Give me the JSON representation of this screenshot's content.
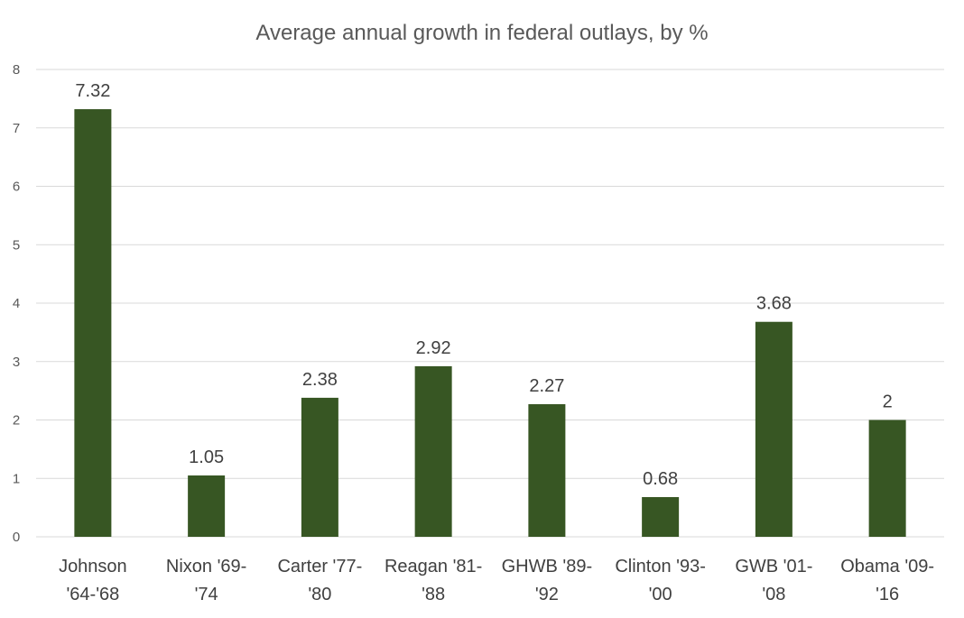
{
  "chart_data": {
    "type": "bar",
    "title": "Average annual growth in federal outlays, by %",
    "xlabel": "",
    "ylabel": "",
    "categories": [
      [
        "Johnson",
        "'64-'68"
      ],
      [
        "Nixon '69-",
        "'74"
      ],
      [
        "Carter '77-",
        "'80"
      ],
      [
        "Reagan '81-",
        "'88"
      ],
      [
        "GHWB '89-",
        "'92"
      ],
      [
        "Clinton '93-",
        "'00"
      ],
      [
        "GWB '01-",
        "'08"
      ],
      [
        "Obama '09-",
        "'16"
      ]
    ],
    "values": [
      7.32,
      1.05,
      2.38,
      2.92,
      2.27,
      0.68,
      3.68,
      2
    ],
    "data_labels": [
      "7.32",
      "1.05",
      "2.38",
      "2.92",
      "2.27",
      "0.68",
      "3.68",
      "2"
    ],
    "ylim": [
      0,
      8
    ],
    "yticks": [
      0,
      1,
      2,
      3,
      4,
      5,
      6,
      7,
      8
    ],
    "grid": true,
    "legend": "none",
    "bar_color": "#375623"
  }
}
